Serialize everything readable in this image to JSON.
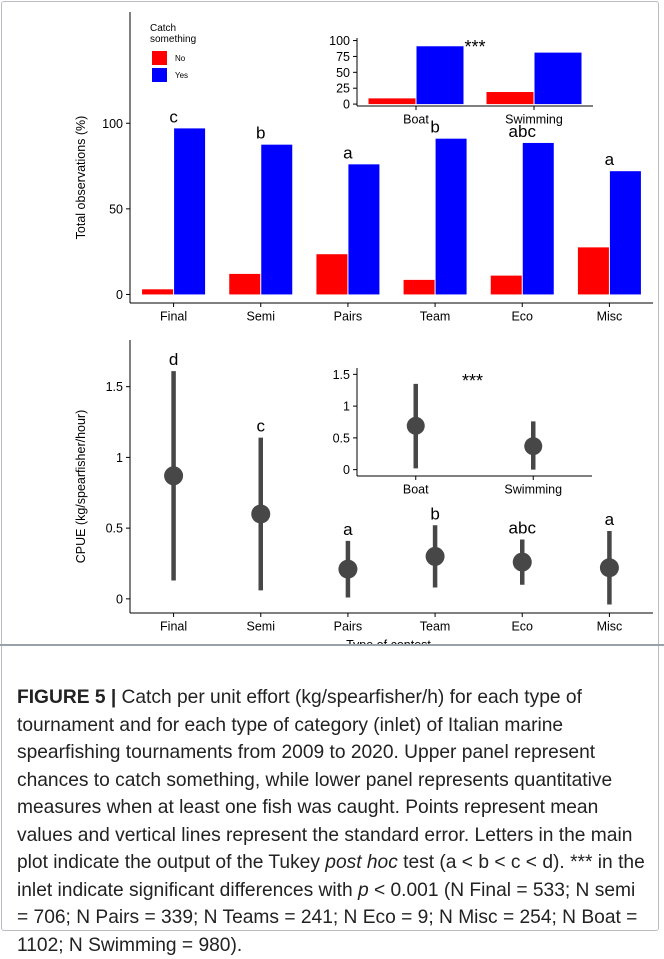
{
  "chart_data": [
    {
      "id": "upper-main",
      "type": "bar",
      "ylabel": "Total observations (%)",
      "xlabel": "",
      "categories": [
        "Final",
        "Semi",
        "Pairs",
        "Team",
        "Eco",
        "Misc"
      ],
      "series": [
        {
          "name": "No",
          "color": "#ff0000",
          "values": [
            3,
            12,
            23.5,
            8.5,
            11,
            27.5
          ]
        },
        {
          "name": "Yes",
          "color": "#0000ff",
          "values": [
            97,
            87.5,
            76,
            91,
            88.5,
            72
          ]
        }
      ],
      "yticks": [
        0,
        50,
        100
      ],
      "ylim": [
        -5,
        165
      ],
      "letters": [
        "c",
        "b",
        "a",
        "b",
        "abc",
        "a"
      ],
      "legend": {
        "title": "Catch\nsomething",
        "position": "top-left"
      },
      "grid": false
    },
    {
      "id": "upper-inset",
      "type": "bar",
      "categories": [
        "Boat",
        "Swimming"
      ],
      "series": [
        {
          "name": "No",
          "color": "#ff0000",
          "values": [
            9,
            19
          ]
        },
        {
          "name": "Yes",
          "color": "#0000ff",
          "values": [
            91,
            81
          ]
        }
      ],
      "yticks": [
        0,
        25,
        50,
        75,
        100
      ],
      "ylim": [
        -3,
        104
      ],
      "annotation": "***"
    },
    {
      "id": "lower-main",
      "type": "scatter",
      "ylabel": "CPUE (kg/spearfisher/hour)",
      "xlabel": "Type of contest",
      "categories": [
        "Final",
        "Semi",
        "Pairs",
        "Team",
        "Eco",
        "Misc"
      ],
      "mean": [
        0.87,
        0.6,
        0.21,
        0.3,
        0.26,
        0.22
      ],
      "lower": [
        0.13,
        0.06,
        0.01,
        0.08,
        0.1,
        -0.04
      ],
      "upper": [
        1.61,
        1.14,
        0.41,
        0.52,
        0.42,
        0.48
      ],
      "yticks": [
        0.0,
        0.5,
        1.0,
        1.5
      ],
      "ylim": [
        -0.1,
        1.83
      ],
      "letters": [
        "d",
        "c",
        "a",
        "b",
        "abc",
        "a"
      ],
      "grid": false
    },
    {
      "id": "lower-inset",
      "type": "scatter",
      "categories": [
        "Boat",
        "Swimming"
      ],
      "mean": [
        0.69,
        0.37
      ],
      "lower": [
        0.02,
        0.0
      ],
      "upper": [
        1.35,
        0.76
      ],
      "yticks": [
        0.0,
        0.5,
        1.0,
        1.5
      ],
      "ylim": [
        -0.1,
        1.6
      ],
      "annotation": "***"
    }
  ],
  "caption": {
    "label": "FIGURE 5 |",
    "text_before_italic": " Catch per unit effort (kg/spearfisher/h) for each type of tournament and for each type of category (inlet) of Italian marine spearfishing tournaments from 2009 to 2020. Upper panel represent chances to catch something, while lower panel represents quantitative measures when at least one fish was caught. Points represent mean values and vertical lines represent the standard error. Letters in the main plot indicate the output of the Tukey ",
    "italic_1": "post hoc",
    "text_middle": " test (a < b < c < d). *** in the inlet indicate significant differences with ",
    "italic_2": "p",
    "text_after_italic": " < 0.001 (N Final = 533; N semi = 706; N Pairs = 339; N Teams = 241; N Eco = 9; N Misc = 254; N Boat = 1102; N Swimming = 980)."
  }
}
